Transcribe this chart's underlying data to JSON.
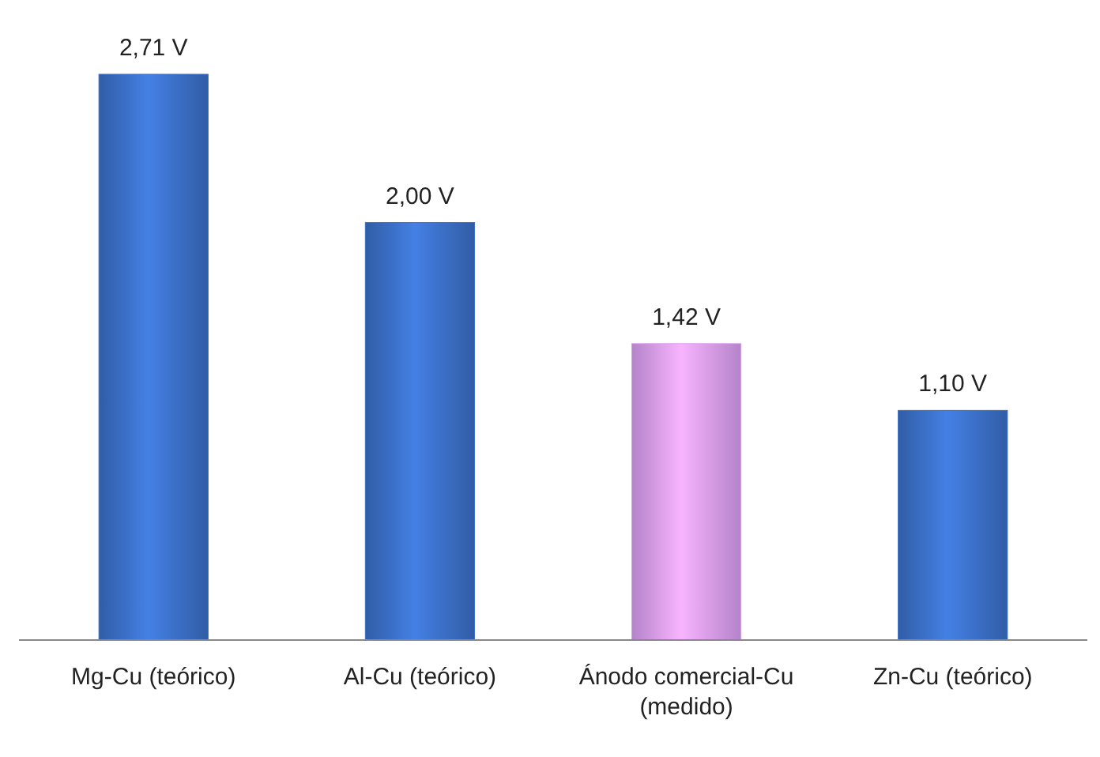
{
  "chart_data": {
    "type": "bar",
    "categories": [
      "Mg-Cu (teórico)",
      "Al-Cu (teórico)",
      "Ánodo comercial-Cu (medido)",
      "Zn-Cu (teórico)"
    ],
    "values": [
      2.71,
      2.0,
      1.42,
      1.1
    ],
    "colors": [
      "#3b6fc6",
      "#3b6fc6",
      "#d79cf0",
      "#3b6fc6"
    ],
    "value_labels": [
      "2,71 V",
      "2,00 V",
      "1,42 V",
      "1,10 V"
    ]
  }
}
